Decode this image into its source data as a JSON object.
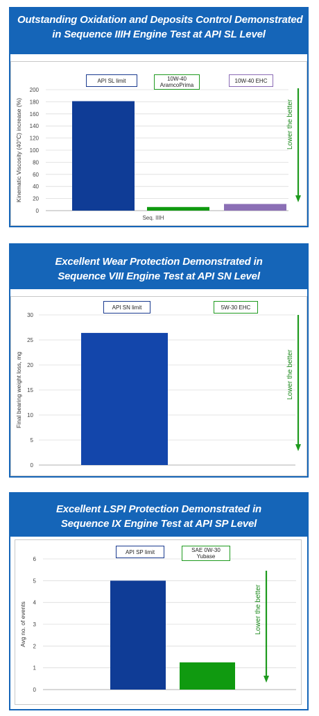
{
  "panels": [
    {
      "title_line1": "Outstanding Oxidation and Deposits Control Demonstrated",
      "title_line2": "in Sequence  IIIH Engine Test at API SL Level",
      "arrow_label": "Lower the better",
      "legend": [
        {
          "label": "API SL limit",
          "color": "#1a3a8f"
        },
        {
          "label": "10W-40\nAramcoPrima",
          "color": "#1e9a1e"
        },
        {
          "label": "10W-40 EHC",
          "color": "#8a6ab5"
        }
      ],
      "chart_data": {
        "type": "bar",
        "categories": [
          "API SL limit",
          "10W-40 AramcoPrima",
          "10W-40 EHC"
        ],
        "values": [
          181,
          6,
          11
        ],
        "colors": [
          "#0f3c96",
          "#109a10",
          "#8b6fb5"
        ],
        "title": "",
        "xlabel": "Seq. IIIH",
        "ylabel": "Kinematic Viscosity (40°C) increase (%)",
        "ylim": [
          0,
          200
        ],
        "yticks": [
          0,
          20,
          40,
          60,
          80,
          100,
          120,
          140,
          160,
          180,
          200
        ],
        "grid": true
      }
    },
    {
      "title_line1": "Excellent Wear Protection Demonstrated in",
      "title_line2": "Sequence VIII Engine Test at API SN Level",
      "arrow_label": "Lower the better",
      "legend": [
        {
          "label": "API SN limit",
          "color": "#1a3a8f"
        },
        {
          "label": "5W-30 EHC",
          "color": "#1e9a1e"
        }
      ],
      "chart_data": {
        "type": "bar",
        "categories": [
          "API SN limit",
          "5W-30 EHC"
        ],
        "values": [
          26.4,
          0
        ],
        "colors": [
          "#1346ab",
          "#109a10"
        ],
        "title": "",
        "xlabel": "",
        "ylabel": "Final bearing weight loss, mg",
        "ylim": [
          0,
          30
        ],
        "yticks": [
          0,
          5,
          10,
          15,
          20,
          25,
          30
        ],
        "grid": true
      }
    },
    {
      "title_line1": "Excellent LSPI Protection Demonstrated in",
      "title_line2": "Sequence IX Engine Test at API SP Level",
      "arrow_label": "Lower the better",
      "legend": [
        {
          "label": "API SP limit",
          "color": "#1a3a8f"
        },
        {
          "label": "SAE 0W-30\nYubase",
          "color": "#1e9a1e"
        }
      ],
      "chart_data": {
        "type": "bar",
        "categories": [
          "API SP limit",
          "SAE 0W-30 Yubase"
        ],
        "values": [
          5,
          1.25
        ],
        "colors": [
          "#0f3c96",
          "#109a10"
        ],
        "title": "",
        "xlabel": "",
        "ylabel": "Avg no. of events",
        "ylim": [
          0,
          6
        ],
        "yticks": [
          0,
          1,
          2,
          3,
          4,
          5,
          6
        ],
        "grid": true
      }
    }
  ]
}
